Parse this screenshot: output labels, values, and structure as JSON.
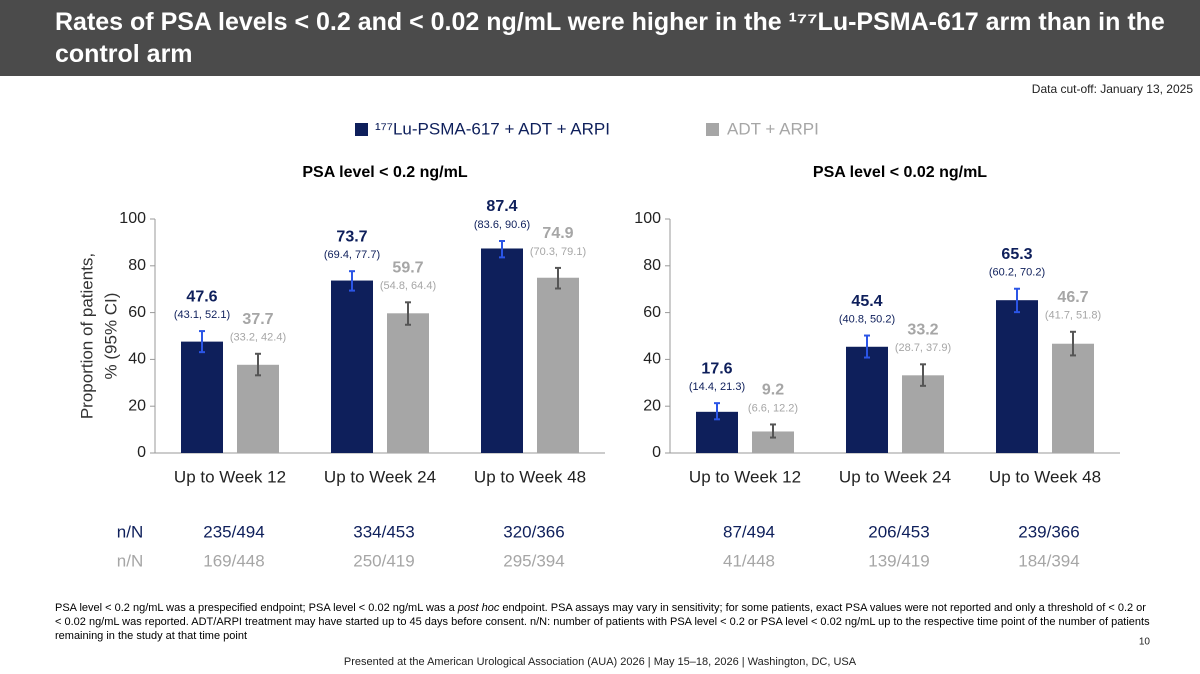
{
  "header": {
    "title": "Rates of PSA levels < 0.2 and < 0.02 ng/mL were higher in the ¹⁷⁷Lu-PSMA-617 arm than in the control arm"
  },
  "cutoff": "Data cut-off: January 13, 2025",
  "chart_data": [
    {
      "type": "bar",
      "title": "PSA level < 0.2 ng/mL",
      "ylabel": [
        "Proportion of patients,",
        "% (95% CI)"
      ],
      "categories": [
        "Up to Week 12",
        "Up to Week 24",
        "Up to Week 48"
      ],
      "ylim": [
        0,
        100
      ],
      "yticks": [
        0,
        20,
        40,
        60,
        80,
        100
      ],
      "series": [
        {
          "name": "¹⁷⁷Lu-PSMA-617 + ADT + ARPI",
          "color": "#0e1f5b",
          "error_color": "#2b55e6",
          "values": [
            47.6,
            73.7,
            87.4
          ],
          "ci": [
            [
              43.1,
              52.1
            ],
            [
              69.4,
              77.7
            ],
            [
              83.6,
              90.6
            ]
          ],
          "ci_labels": [
            "(43.1, 52.1)",
            "(69.4, 77.7)",
            "(83.6, 90.6)"
          ],
          "row_label": "n/N",
          "counts": [
            "235/494",
            "334/453",
            "320/366"
          ]
        },
        {
          "name": "ADT + ARPI",
          "color": "#a6a6a6",
          "error_color": "#555555",
          "values": [
            37.7,
            59.7,
            74.9
          ],
          "ci": [
            [
              33.2,
              42.4
            ],
            [
              54.8,
              64.4
            ],
            [
              70.3,
              79.1
            ]
          ],
          "ci_labels": [
            "(33.2, 42.4)",
            "(54.8, 64.4)",
            "(70.3, 79.1)"
          ],
          "row_label": "n/N",
          "counts": [
            "169/448",
            "250/419",
            "295/394"
          ]
        }
      ]
    },
    {
      "type": "bar",
      "title": "PSA level < 0.02 ng/mL",
      "categories": [
        "Up to Week 12",
        "Up to Week 24",
        "Up to Week 48"
      ],
      "ylim": [
        0,
        100
      ],
      "yticks": [
        0,
        20,
        40,
        60,
        80,
        100
      ],
      "series": [
        {
          "color": "#0e1f5b",
          "error_color": "#2b55e6",
          "values": [
            17.6,
            45.4,
            65.3
          ],
          "ci": [
            [
              14.4,
              21.3
            ],
            [
              40.8,
              50.2
            ],
            [
              60.2,
              70.2
            ]
          ],
          "ci_labels": [
            "(14.4, 21.3)",
            "(40.8, 50.2)",
            "(60.2, 70.2)"
          ],
          "counts": [
            "87/494",
            "206/453",
            "239/366"
          ]
        },
        {
          "color": "#a6a6a6",
          "error_color": "#555555",
          "values": [
            9.2,
            33.2,
            46.7
          ],
          "ci": [
            [
              6.6,
              12.2
            ],
            [
              28.7,
              37.9
            ],
            [
              41.7,
              51.8
            ]
          ],
          "ci_labels": [
            "(6.6, 12.2)",
            "(28.7, 37.9)",
            "(41.7, 51.8)"
          ],
          "counts": [
            "41/448",
            "139/419",
            "184/394"
          ]
        }
      ]
    }
  ],
  "footnote": [
    "PSA level < 0.2 ng/mL was a prespecified endpoint; PSA level < 0.02 ng/mL was a ",
    "post hoc",
    " endpoint. PSA assays may vary in sensitivity; for some patients, exact PSA values were not reported and only a threshold of < 0.2 or < 0.02 ng/mL was reported. ADT/ARPI treatment may have started up to 45 days before consent. n/N: number of patients with PSA level < 0.2 or PSA level < 0.02 ng/mL up to the respective time point of the number of patients remaining in the study at that time point"
  ],
  "page_number": 10,
  "presented": "Presented at the American Urological Association (AUA) 2026 | May 15–18, 2026 | Washington, DC, USA"
}
